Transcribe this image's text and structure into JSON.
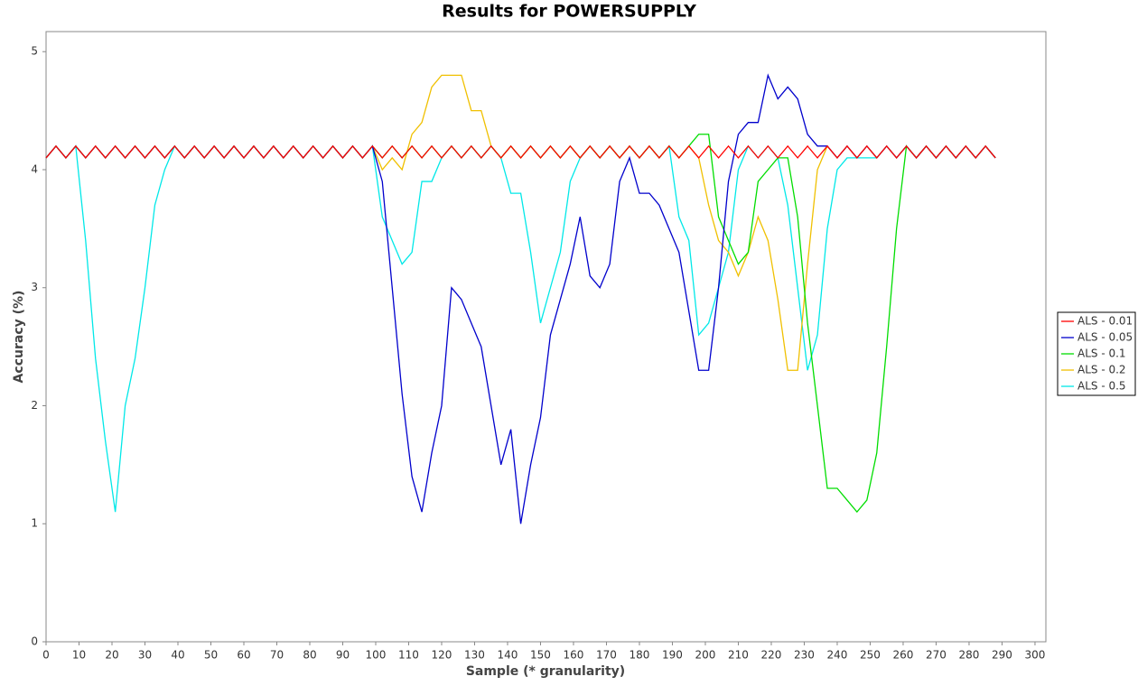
{
  "chart_data": {
    "type": "line",
    "title": "Results for POWERSUPPLY",
    "x_label": "Sample (* granularity)",
    "y_label": "Accuracy (%)",
    "x": [
      0,
      3,
      6,
      9,
      12,
      15,
      18,
      21,
      24,
      27,
      30,
      33,
      36,
      39,
      42,
      45,
      48,
      51,
      54,
      57,
      60,
      63,
      66,
      69,
      72,
      75,
      78,
      81,
      84,
      87,
      90,
      93,
      96,
      99,
      102,
      105,
      108,
      111,
      114,
      117,
      120,
      123,
      126,
      129,
      132,
      135,
      138,
      141,
      144,
      147,
      150,
      153,
      156,
      159,
      162,
      165,
      168,
      171,
      174,
      177,
      180,
      183,
      186,
      189,
      192,
      195,
      198,
      201,
      204,
      207,
      210,
      213,
      216,
      219,
      222,
      225,
      228,
      231,
      234,
      237,
      240,
      243,
      246,
      249,
      252,
      255,
      258,
      261,
      264,
      267,
      270,
      273,
      276,
      279,
      282,
      285,
      288
    ],
    "series": [
      {
        "name": "ALS - 0.5",
        "color": "#00e8e8",
        "values": [
          4.1,
          4.2,
          4.1,
          4.2,
          3.4,
          2.4,
          1.7,
          1.1,
          2.0,
          2.4,
          3.0,
          3.7,
          4.0,
          4.2,
          4.1,
          4.2,
          4.1,
          4.2,
          4.1,
          4.2,
          4.1,
          4.2,
          4.1,
          4.2,
          4.1,
          4.2,
          4.1,
          4.2,
          4.1,
          4.2,
          4.1,
          4.2,
          4.1,
          4.2,
          3.6,
          3.4,
          3.2,
          3.3,
          3.9,
          3.9,
          4.1,
          4.2,
          4.1,
          4.2,
          4.1,
          4.2,
          4.1,
          3.8,
          3.8,
          3.3,
          2.7,
          3.0,
          3.3,
          3.9,
          4.1,
          4.2,
          4.1,
          4.2,
          4.1,
          4.2,
          4.1,
          4.2,
          4.1,
          4.2,
          3.6,
          3.4,
          2.6,
          2.7,
          3.0,
          3.3,
          4.0,
          4.2,
          4.1,
          4.2,
          4.1,
          3.7,
          3.0,
          2.3,
          2.6,
          3.5,
          4.0,
          4.1,
          4.1,
          4.1,
          4.1,
          4.2,
          4.1,
          4.2,
          4.1,
          4.2,
          4.1,
          4.2,
          4.1,
          4.2,
          4.1,
          4.2,
          4.1
        ]
      },
      {
        "name": "ALS - 0.2",
        "color": "#f0c000",
        "values": [
          4.1,
          4.2,
          4.1,
          4.2,
          4.1,
          4.2,
          4.1,
          4.2,
          4.1,
          4.2,
          4.1,
          4.2,
          4.1,
          4.2,
          4.1,
          4.2,
          4.1,
          4.2,
          4.1,
          4.2,
          4.1,
          4.2,
          4.1,
          4.2,
          4.1,
          4.2,
          4.1,
          4.2,
          4.1,
          4.2,
          4.1,
          4.2,
          4.1,
          4.2,
          4.0,
          4.1,
          4.0,
          4.3,
          4.4,
          4.7,
          4.8,
          4.8,
          4.8,
          4.5,
          4.5,
          4.2,
          4.1,
          4.2,
          4.1,
          4.2,
          4.1,
          4.2,
          4.1,
          4.2,
          4.1,
          4.2,
          4.1,
          4.2,
          4.1,
          4.2,
          4.1,
          4.2,
          4.1,
          4.2,
          4.1,
          4.2,
          4.1,
          3.7,
          3.4,
          3.3,
          3.1,
          3.3,
          3.6,
          3.4,
          2.9,
          2.3,
          2.3,
          3.2,
          4.0,
          4.2,
          4.1,
          4.2,
          4.1,
          4.2,
          4.1,
          4.2,
          4.1,
          4.2,
          4.1,
          4.2,
          4.1,
          4.2,
          4.1,
          4.2,
          4.1,
          4.2,
          4.1
        ]
      },
      {
        "name": "ALS - 0.1",
        "color": "#00dd00",
        "values": [
          4.1,
          4.2,
          4.1,
          4.2,
          4.1,
          4.2,
          4.1,
          4.2,
          4.1,
          4.2,
          4.1,
          4.2,
          4.1,
          4.2,
          4.1,
          4.2,
          4.1,
          4.2,
          4.1,
          4.2,
          4.1,
          4.2,
          4.1,
          4.2,
          4.1,
          4.2,
          4.1,
          4.2,
          4.1,
          4.2,
          4.1,
          4.2,
          4.1,
          4.2,
          4.1,
          4.2,
          4.1,
          4.2,
          4.1,
          4.2,
          4.1,
          4.2,
          4.1,
          4.2,
          4.1,
          4.2,
          4.1,
          4.2,
          4.1,
          4.2,
          4.1,
          4.2,
          4.1,
          4.2,
          4.1,
          4.2,
          4.1,
          4.2,
          4.1,
          4.2,
          4.1,
          4.2,
          4.1,
          4.2,
          4.1,
          4.2,
          4.3,
          4.3,
          3.6,
          3.4,
          3.2,
          3.3,
          3.9,
          4.0,
          4.1,
          4.1,
          3.6,
          2.7,
          2.0,
          1.3,
          1.3,
          1.2,
          1.1,
          1.2,
          1.6,
          2.5,
          3.5,
          4.2,
          4.1,
          4.2,
          4.1,
          4.2,
          4.1,
          4.2,
          4.1,
          4.2,
          4.1
        ]
      },
      {
        "name": "ALS - 0.05",
        "color": "#0000cc",
        "values": [
          4.1,
          4.2,
          4.1,
          4.2,
          4.1,
          4.2,
          4.1,
          4.2,
          4.1,
          4.2,
          4.1,
          4.2,
          4.1,
          4.2,
          4.1,
          4.2,
          4.1,
          4.2,
          4.1,
          4.2,
          4.1,
          4.2,
          4.1,
          4.2,
          4.1,
          4.2,
          4.1,
          4.2,
          4.1,
          4.2,
          4.1,
          4.2,
          4.1,
          4.2,
          3.9,
          3.0,
          2.1,
          1.4,
          1.1,
          1.6,
          2.0,
          3.0,
          2.9,
          2.7,
          2.5,
          2.0,
          1.5,
          1.8,
          1.0,
          1.5,
          1.9,
          2.6,
          2.9,
          3.2,
          3.6,
          3.1,
          3.0,
          3.2,
          3.9,
          4.1,
          3.8,
          3.8,
          3.7,
          3.5,
          3.3,
          2.8,
          2.3,
          2.3,
          3.0,
          3.9,
          4.3,
          4.4,
          4.4,
          4.8,
          4.6,
          4.7,
          4.6,
          4.3,
          4.2,
          4.2,
          4.1,
          4.2,
          4.1,
          4.2,
          4.1,
          4.2,
          4.1,
          4.2,
          4.1,
          4.2,
          4.1,
          4.2,
          4.1,
          4.2,
          4.1,
          4.2,
          4.1
        ]
      },
      {
        "name": "ALS - 0.01",
        "color": "#ff0000",
        "values": [
          4.1,
          4.2,
          4.1,
          4.2,
          4.1,
          4.2,
          4.1,
          4.2,
          4.1,
          4.2,
          4.1,
          4.2,
          4.1,
          4.2,
          4.1,
          4.2,
          4.1,
          4.2,
          4.1,
          4.2,
          4.1,
          4.2,
          4.1,
          4.2,
          4.1,
          4.2,
          4.1,
          4.2,
          4.1,
          4.2,
          4.1,
          4.2,
          4.1,
          4.2,
          4.1,
          4.2,
          4.1,
          4.2,
          4.1,
          4.2,
          4.1,
          4.2,
          4.1,
          4.2,
          4.1,
          4.2,
          4.1,
          4.2,
          4.1,
          4.2,
          4.1,
          4.2,
          4.1,
          4.2,
          4.1,
          4.2,
          4.1,
          4.2,
          4.1,
          4.2,
          4.1,
          4.2,
          4.1,
          4.2,
          4.1,
          4.2,
          4.1,
          4.2,
          4.1,
          4.2,
          4.1,
          4.2,
          4.1,
          4.2,
          4.1,
          4.2,
          4.1,
          4.2,
          4.1,
          4.2,
          4.1,
          4.2,
          4.1,
          4.2,
          4.1,
          4.2,
          4.1,
          4.2,
          4.1,
          4.2,
          4.1,
          4.2,
          4.1,
          4.2,
          4.1,
          4.2,
          4.1
        ]
      }
    ],
    "legend_order": [
      4,
      3,
      2,
      1,
      0
    ],
    "xlim": [
      0,
      303.3
    ],
    "ylim": [
      0,
      5.17
    ],
    "xticks": [
      0,
      10,
      20,
      30,
      40,
      50,
      60,
      70,
      80,
      90,
      100,
      110,
      120,
      130,
      140,
      150,
      160,
      170,
      180,
      190,
      200,
      210,
      220,
      230,
      240,
      250,
      260,
      270,
      280,
      290,
      300
    ],
    "yticks": [
      0,
      1,
      2,
      3,
      4,
      5
    ],
    "grid": false,
    "legend": "right"
  }
}
